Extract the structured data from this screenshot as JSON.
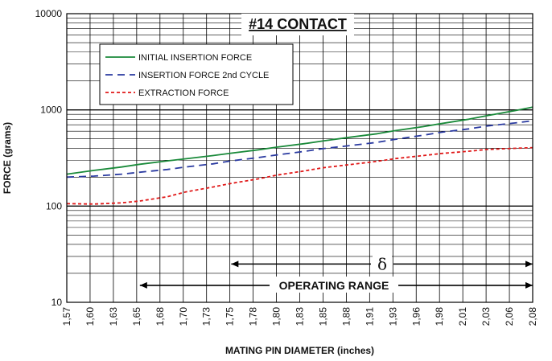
{
  "chart_data": {
    "type": "line",
    "title": "#14 CONTACT",
    "xlabel": "MATING PIN DIAMETER (inches)",
    "ylabel": "FORCE (grams)",
    "yscale": "log",
    "ylim": [
      10,
      10000
    ],
    "xlim": [
      1.57,
      2.08
    ],
    "grid": true,
    "legend_position": "top-left",
    "x_tick_labels": [
      "1,57",
      "1,60",
      "1,63",
      "1,65",
      "1,68",
      "1,70",
      "1,73",
      "1,75",
      "1,78",
      "1,80",
      "1,83",
      "1,85",
      "1,88",
      "1,91",
      "1,93",
      "1,96",
      "1,98",
      "2,01",
      "2,03",
      "2,06",
      "2,08"
    ],
    "y_tick_labels": [
      {
        "value": 10,
        "label": "10"
      },
      {
        "value": 100,
        "label": "100"
      },
      {
        "value": 1000,
        "label": "1000"
      },
      {
        "value": 10000,
        "label": "10000"
      }
    ],
    "series": [
      {
        "name": "INITIAL INSERTION FORCE",
        "color": "#1a8a3a",
        "style": "solid",
        "x": [
          1.57,
          1.6,
          1.63,
          1.65,
          1.68,
          1.7,
          1.73,
          1.75,
          1.78,
          1.8,
          1.83,
          1.85,
          1.88,
          1.91,
          1.93,
          1.96,
          1.98,
          2.01,
          2.03,
          2.06,
          2.08
        ],
        "y": [
          215,
          235,
          255,
          272,
          295,
          310,
          335,
          355,
          385,
          410,
          445,
          475,
          520,
          565,
          610,
          670,
          720,
          800,
          870,
          980,
          1070
        ]
      },
      {
        "name": "INSERTION FORCE 2nd CYCLE",
        "color": "#2a3aa0",
        "style": "dashed",
        "x": [
          1.57,
          1.6,
          1.63,
          1.65,
          1.68,
          1.7,
          1.73,
          1.75,
          1.78,
          1.8,
          1.83,
          1.85,
          1.88,
          1.91,
          1.93,
          1.96,
          1.98,
          2.01,
          2.03,
          2.06,
          2.08
        ],
        "y": [
          200,
          205,
          215,
          225,
          240,
          255,
          275,
          295,
          320,
          340,
          370,
          395,
          425,
          460,
          495,
          545,
          585,
          635,
          680,
          730,
          770
        ]
      },
      {
        "name": "EXTRACTION FORCE",
        "color": "#e01818",
        "style": "dotted",
        "x": [
          1.57,
          1.6,
          1.63,
          1.65,
          1.68,
          1.7,
          1.73,
          1.75,
          1.78,
          1.8,
          1.83,
          1.85,
          1.88,
          1.91,
          1.93,
          1.96,
          1.98,
          2.01,
          2.03,
          2.06,
          2.08
        ],
        "y": [
          106,
          105,
          108,
          113,
          125,
          140,
          158,
          172,
          192,
          210,
          232,
          250,
          270,
          292,
          312,
          335,
          352,
          372,
          388,
          398,
          405
        ]
      }
    ],
    "annotations": [
      {
        "label": "δ",
        "x_range": [
          1.75,
          2.08
        ],
        "y": 25
      },
      {
        "label": "OPERATING RANGE",
        "x_range": [
          1.65,
          2.08
        ],
        "y": 15
      }
    ]
  }
}
